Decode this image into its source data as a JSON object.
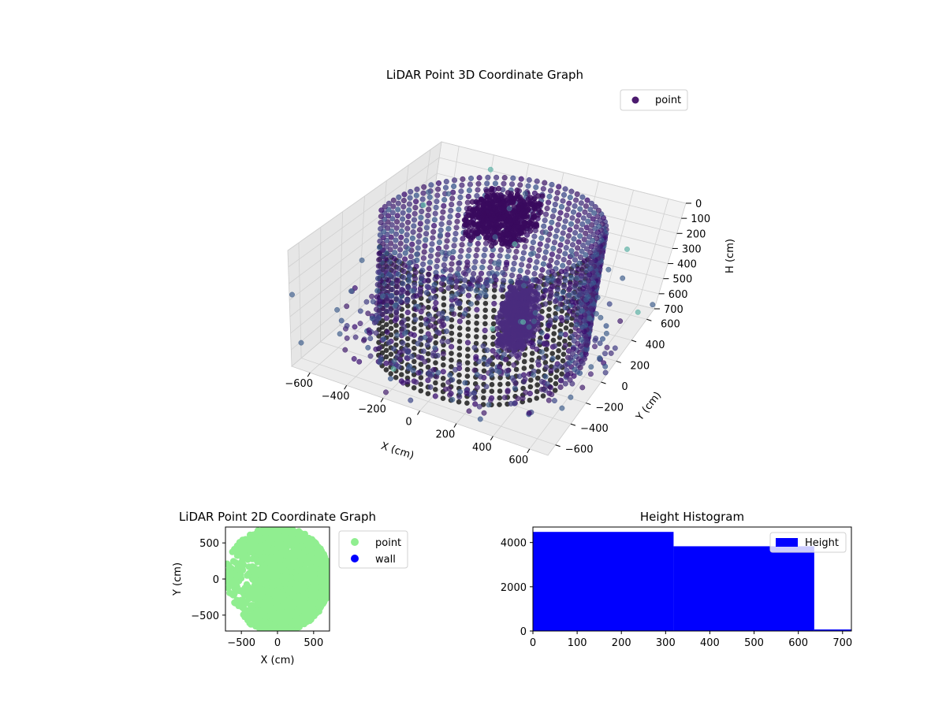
{
  "chart_data": [
    {
      "type": "scatter",
      "projection": "3d",
      "title": "LiDAR Point 3D Coordinate Graph",
      "xlabel": "X (cm)",
      "ylabel": "Y (cm)",
      "zlabel": "H (cm)",
      "xticks": [
        "−600",
        "−400",
        "−200",
        "0",
        "200",
        "400",
        "600"
      ],
      "yticks": [
        "−600",
        "−400",
        "−200",
        "0",
        "200",
        "400",
        "600"
      ],
      "zticks": [
        "0",
        "100",
        "200",
        "300",
        "400",
        "500",
        "600",
        "700"
      ],
      "xlim": [
        -700,
        700
      ],
      "ylim": [
        -700,
        700
      ],
      "zlim": [
        0,
        700
      ],
      "z_inverted": true,
      "grid": true,
      "legend": {
        "entries": [
          {
            "label": "point",
            "color": "#4b1a6e"
          }
        ],
        "placement": "top-right"
      },
      "colormap": "viridis",
      "structures": [
        {
          "kind": "curved-wall",
          "description_in_data_units": {
            "center": [
              0,
              0
            ],
            "radius": 560,
            "angle_from_deg": -130,
            "angle_to_deg": 190,
            "height_range": [
              0,
              700
            ]
          }
        },
        {
          "kind": "block",
          "x": [
            -250,
            50
          ],
          "y": [
            150,
            450
          ],
          "height_range": [
            0,
            200
          ]
        },
        {
          "kind": "block",
          "x": [
            100,
            250
          ],
          "y": [
            -50,
            150
          ],
          "height_range": [
            350,
            650
          ]
        }
      ]
    },
    {
      "type": "scatter",
      "title": "LiDAR Point 2D Coordinate Graph",
      "xlabel": "X (cm)",
      "ylabel": "Y (cm)",
      "xticks": [
        "−500",
        "0",
        "500"
      ],
      "yticks": [
        "−500",
        "0",
        "500"
      ],
      "xlim": [
        -720,
        720
      ],
      "ylim": [
        -720,
        720
      ],
      "legend": {
        "entries": [
          {
            "label": "point",
            "color": "#90ee90"
          },
          {
            "label": "wall",
            "color": "#0000ff"
          }
        ],
        "placement": "outside-right"
      },
      "point_color": "#90ee90"
    },
    {
      "type": "bar",
      "subtype": "histogram",
      "title": "Height Histogram",
      "xticks": [
        "0",
        "100",
        "200",
        "300",
        "400",
        "500",
        "600",
        "700"
      ],
      "yticks": [
        "0",
        "2000",
        "4000"
      ],
      "xlim": [
        0,
        720
      ],
      "ylim": [
        0,
        4700
      ],
      "bins": [
        {
          "from": 0,
          "to": 318,
          "count": 4480
        },
        {
          "from": 318,
          "to": 636,
          "count": 3830
        },
        {
          "from": 636,
          "to": 720,
          "count": 70
        }
      ],
      "series": [
        {
          "name": "Height",
          "color": "#0000ff"
        }
      ],
      "legend": {
        "placement": "top-right"
      }
    }
  ]
}
